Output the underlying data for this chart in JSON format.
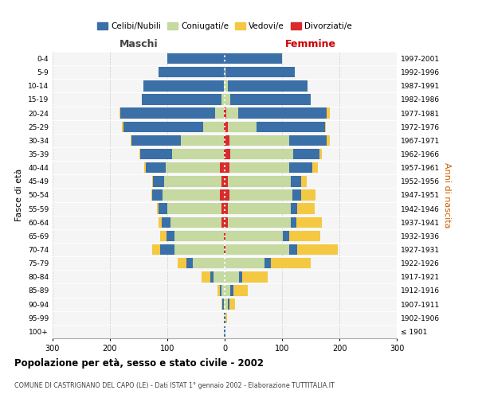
{
  "age_groups": [
    "100+",
    "95-99",
    "90-94",
    "85-89",
    "80-84",
    "75-79",
    "70-74",
    "65-69",
    "60-64",
    "55-59",
    "50-54",
    "45-49",
    "40-44",
    "35-39",
    "30-34",
    "25-29",
    "20-24",
    "15-19",
    "10-14",
    "5-9",
    "0-4"
  ],
  "birth_years": [
    "≤ 1901",
    "1902-1906",
    "1907-1911",
    "1912-1916",
    "1917-1921",
    "1922-1926",
    "1927-1931",
    "1932-1936",
    "1937-1941",
    "1942-1946",
    "1947-1951",
    "1952-1956",
    "1957-1961",
    "1962-1966",
    "1967-1971",
    "1972-1976",
    "1977-1981",
    "1982-1986",
    "1987-1991",
    "1992-1996",
    "1997-2001"
  ],
  "colors": {
    "celibi": "#3a6fa8",
    "coniugati": "#c5d9a0",
    "vedovi": "#f5c842",
    "divorziati": "#d92b2b"
  },
  "maschi": {
    "celibi": [
      1,
      1,
      2,
      3,
      5,
      12,
      25,
      15,
      15,
      15,
      18,
      20,
      35,
      55,
      85,
      140,
      165,
      140,
      140,
      115,
      100
    ],
    "coniugati": [
      0,
      0,
      2,
      5,
      20,
      55,
      85,
      85,
      90,
      95,
      100,
      100,
      95,
      90,
      75,
      35,
      15,
      5,
      2,
      0,
      0
    ],
    "vedovi": [
      0,
      0,
      2,
      5,
      15,
      15,
      15,
      10,
      5,
      3,
      2,
      2,
      2,
      2,
      2,
      2,
      2,
      0,
      0,
      0,
      0
    ],
    "divorziati": [
      0,
      0,
      0,
      0,
      0,
      0,
      2,
      2,
      5,
      5,
      8,
      5,
      8,
      2,
      2,
      2,
      2,
      0,
      0,
      0,
      0
    ]
  },
  "femmine": {
    "celibi": [
      1,
      2,
      3,
      5,
      5,
      10,
      15,
      10,
      10,
      12,
      15,
      18,
      40,
      45,
      65,
      120,
      155,
      140,
      140,
      120,
      100
    ],
    "coniugati": [
      0,
      0,
      5,
      10,
      25,
      70,
      110,
      100,
      110,
      110,
      110,
      110,
      105,
      110,
      105,
      50,
      20,
      10,
      5,
      2,
      0
    ],
    "vedovi": [
      0,
      2,
      10,
      25,
      45,
      70,
      70,
      55,
      45,
      30,
      25,
      10,
      10,
      5,
      5,
      2,
      5,
      0,
      0,
      0,
      0
    ],
    "divorziati": [
      0,
      0,
      0,
      0,
      0,
      0,
      2,
      2,
      5,
      5,
      8,
      5,
      8,
      10,
      8,
      5,
      3,
      0,
      0,
      0,
      0
    ]
  },
  "xlim": 300,
  "title": "Popolazione per età, sesso e stato civile - 2002",
  "subtitle": "COMUNE DI CASTRIGNANO DEL CAPO (LE) - Dati ISTAT 1° gennaio 2002 - Elaborazione TUTTITALIA.IT",
  "ylabel_left": "Fasce di età",
  "ylabel_right": "Anni di nascita",
  "label_maschi": "Maschi",
  "label_femmine": "Femmine",
  "legend_labels": [
    "Celibi/Nubili",
    "Coniugati/e",
    "Vedovi/e",
    "Divorziati/e"
  ],
  "bg_color": "#f5f5f5",
  "grid_color": "#cccccc"
}
